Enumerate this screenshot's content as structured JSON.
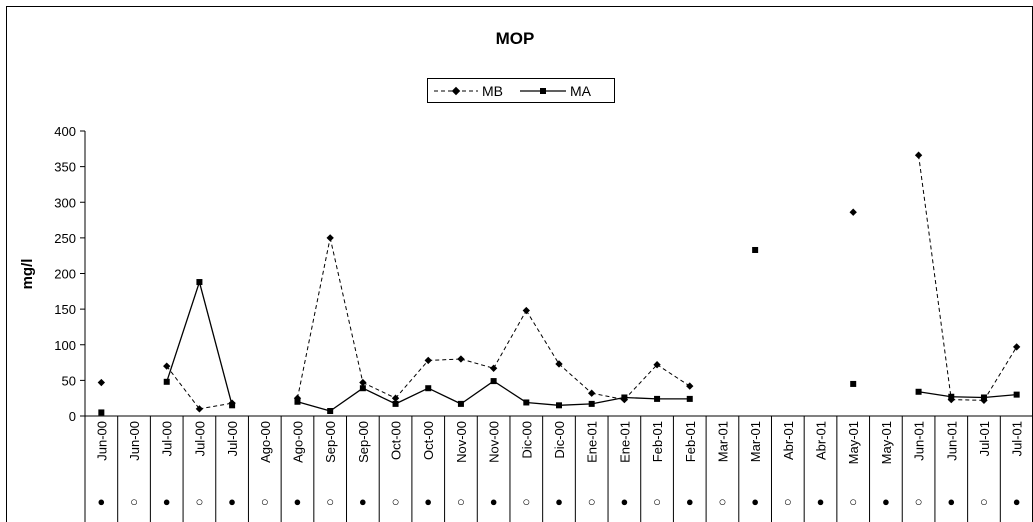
{
  "chart_data": {
    "type": "line",
    "title": "MOP",
    "xlabel": "",
    "ylabel": "mg/l",
    "ylim": [
      0,
      400
    ],
    "yticks": [
      "0",
      "50",
      "100",
      "150",
      "200",
      "250",
      "300",
      "350",
      "400"
    ],
    "ytick_values": [
      0,
      50,
      100,
      150,
      200,
      250,
      300,
      350,
      400
    ],
    "legend_position": "top-center",
    "categories": [
      "Jun-00",
      "Jun-00",
      "Jul-00",
      "Jul-00",
      "Jul-00",
      "Ago-00",
      "Ago-00",
      "Sep-00",
      "Sep-00",
      "Oct-00",
      "Oct-00",
      "Nov-00",
      "Nov-00",
      "Dic-00",
      "Dic-00",
      "Ene-01",
      "Ene-01",
      "Feb-01",
      "Feb-01",
      "Mar-01",
      "Mar-01",
      "Abr-01",
      "Abr-01",
      "May-01",
      "May-01",
      "Jun-01",
      "Jun-01",
      "Jul-01",
      "Jul-01"
    ],
    "markers": [
      "●",
      "○",
      "●",
      "○",
      "●",
      "○",
      "●",
      "○",
      "●",
      "○",
      "●",
      "○",
      "●",
      "○",
      "●",
      "○",
      "●",
      "○",
      "●",
      "○",
      "●",
      "○",
      "●",
      "○",
      "●",
      "○",
      "●",
      "○",
      "●"
    ],
    "series": [
      {
        "name": "MB",
        "style": "dashed",
        "marker": "diamond",
        "values": [
          47,
          null,
          70,
          10,
          18,
          null,
          25,
          250,
          47,
          25,
          78,
          80,
          67,
          148,
          73,
          32,
          23,
          72,
          42,
          null,
          null,
          null,
          null,
          286,
          null,
          366,
          23,
          22,
          97
        ]
      },
      {
        "name": "MA",
        "style": "solid",
        "marker": "square",
        "values": [
          5,
          null,
          48,
          188,
          15,
          null,
          20,
          7,
          39,
          17,
          39,
          17,
          49,
          19,
          15,
          17,
          26,
          24,
          24,
          null,
          233,
          null,
          null,
          45,
          null,
          34,
          27,
          26,
          30
        ]
      }
    ]
  }
}
